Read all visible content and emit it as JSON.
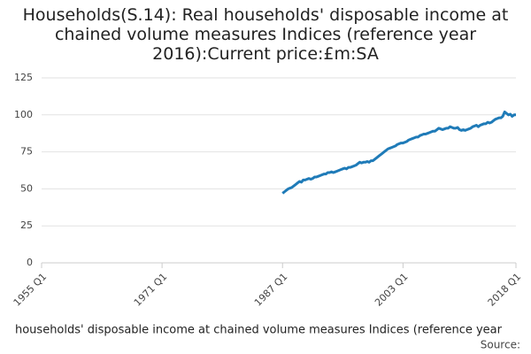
{
  "chart_data": {
    "type": "line",
    "title": "Households(S.14): Real households' disposable income at chained volume measures Indices (reference year 2016):Current price:£m:SA",
    "x_label": "households' disposable income at chained volume measures Indices (reference year",
    "source": "Source:",
    "xlim": [
      1955,
      2018
    ],
    "xticks": [
      {
        "value": 1955,
        "label": "1955 Q1"
      },
      {
        "value": 1971,
        "label": "1971 Q1"
      },
      {
        "value": 1987,
        "label": "1987 Q1"
      },
      {
        "value": 2003,
        "label": "2003 Q1"
      },
      {
        "value": 2018,
        "label": "2018 Q1"
      }
    ],
    "ylim": [
      0,
      125
    ],
    "yticks": [
      0,
      25,
      50,
      75,
      100,
      125
    ],
    "grid": true,
    "series": [
      {
        "color": "#1f7bb8",
        "x": [
          1987,
          1987.25,
          1987.5,
          1987.75,
          1988,
          1988.25,
          1988.5,
          1988.75,
          1989,
          1989.25,
          1989.5,
          1989.75,
          1990,
          1990.25,
          1990.5,
          1990.75,
          1991,
          1991.25,
          1991.5,
          1991.75,
          1992,
          1992.25,
          1992.5,
          1992.75,
          1993,
          1993.25,
          1993.5,
          1993.75,
          1994,
          1994.25,
          1994.5,
          1994.75,
          1995,
          1995.25,
          1995.5,
          1995.75,
          1996,
          1996.25,
          1996.5,
          1996.75,
          1997,
          1997.25,
          1997.5,
          1997.75,
          1998,
          1998.25,
          1998.5,
          1998.75,
          1999,
          1999.25,
          1999.5,
          1999.75,
          2000,
          2000.25,
          2000.5,
          2000.75,
          2001,
          2001.25,
          2001.5,
          2001.75,
          2002,
          2002.25,
          2002.5,
          2002.75,
          2003,
          2003.25,
          2003.5,
          2003.75,
          2004,
          2004.25,
          2004.5,
          2004.75,
          2005,
          2005.25,
          2005.5,
          2005.75,
          2006,
          2006.25,
          2006.5,
          2006.75,
          2007,
          2007.25,
          2007.5,
          2007.75,
          2008,
          2008.25,
          2008.5,
          2008.75,
          2009,
          2009.25,
          2009.5,
          2009.75,
          2010,
          2010.25,
          2010.5,
          2010.75,
          2011,
          2011.25,
          2011.5,
          2011.75,
          2012,
          2012.25,
          2012.5,
          2012.75,
          2013,
          2013.25,
          2013.5,
          2013.75,
          2014,
          2014.25,
          2014.5,
          2014.75,
          2015,
          2015.25,
          2015.5,
          2015.75,
          2016,
          2016.25,
          2016.5,
          2016.75,
          2017,
          2017.25,
          2017.5,
          2017.75,
          2018
        ],
        "values": [
          47,
          48,
          49,
          50,
          50.5,
          51,
          52,
          53,
          54,
          55,
          54.5,
          56,
          56,
          56.5,
          57,
          56.5,
          57,
          58,
          58,
          58.5,
          59,
          59.5,
          60,
          60,
          61,
          61,
          61.5,
          61,
          61.5,
          62,
          62.5,
          63,
          63.5,
          64,
          63.5,
          64.5,
          64.5,
          65,
          65.5,
          66,
          67,
          68,
          67.5,
          68,
          68,
          68.5,
          68,
          69,
          69,
          70,
          71,
          72,
          73,
          74,
          75,
          76,
          77,
          77.5,
          78,
          78.5,
          79,
          80,
          80.5,
          81,
          81,
          81.5,
          82,
          83,
          83.5,
          84,
          84.5,
          85,
          85,
          86,
          86.5,
          87,
          87,
          87.5,
          88,
          88.5,
          89,
          89,
          90,
          91,
          90.5,
          90,
          90.5,
          91,
          91,
          92,
          91.5,
          91,
          91,
          91.5,
          90,
          89.5,
          90,
          89.5,
          90,
          90.5,
          91,
          92,
          92.5,
          93,
          92,
          93,
          93.5,
          94,
          94,
          95,
          94.5,
          95,
          96,
          97,
          97.5,
          98,
          98,
          99,
          102,
          101,
          100,
          100.5,
          99,
          100,
          100
        ]
      }
    ]
  }
}
